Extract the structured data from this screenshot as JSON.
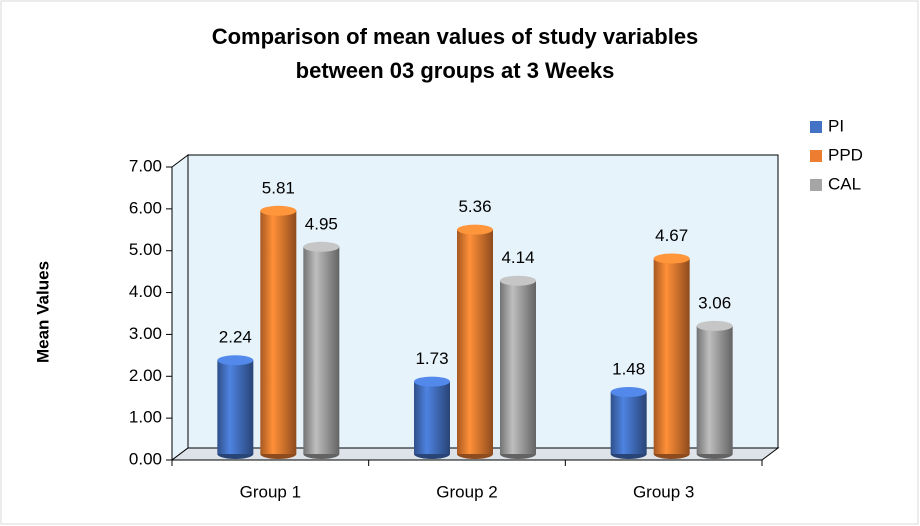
{
  "chart_data": {
    "type": "bar",
    "title": [
      "Comparison of mean values of study variables",
      "between 03 groups at 3 Weeks"
    ],
    "y_label": "Mean Values",
    "categories": [
      "Group 1",
      "Group 2",
      "Group 3"
    ],
    "series": [
      {
        "name": "PI",
        "color": "#4472c4",
        "values": [
          2.24,
          1.73,
          1.48
        ]
      },
      {
        "name": "PPD",
        "color": "#ed7d31",
        "values": [
          5.81,
          5.36,
          4.67
        ]
      },
      {
        "name": "CAL",
        "color": "#a5a5a5",
        "values": [
          4.95,
          4.14,
          3.06
        ]
      }
    ],
    "ylim": [
      0,
      7
    ],
    "yticks": [
      {
        "value": 0,
        "label": "0.00"
      },
      {
        "value": 1,
        "label": "1.00"
      },
      {
        "value": 2,
        "label": "2.00"
      },
      {
        "value": 3,
        "label": "3.00"
      },
      {
        "value": 4,
        "label": "4.00"
      },
      {
        "value": 5,
        "label": "5.00"
      },
      {
        "value": 6,
        "label": "6.00"
      },
      {
        "value": 7,
        "label": "7.00"
      }
    ],
    "legend": "right"
  }
}
